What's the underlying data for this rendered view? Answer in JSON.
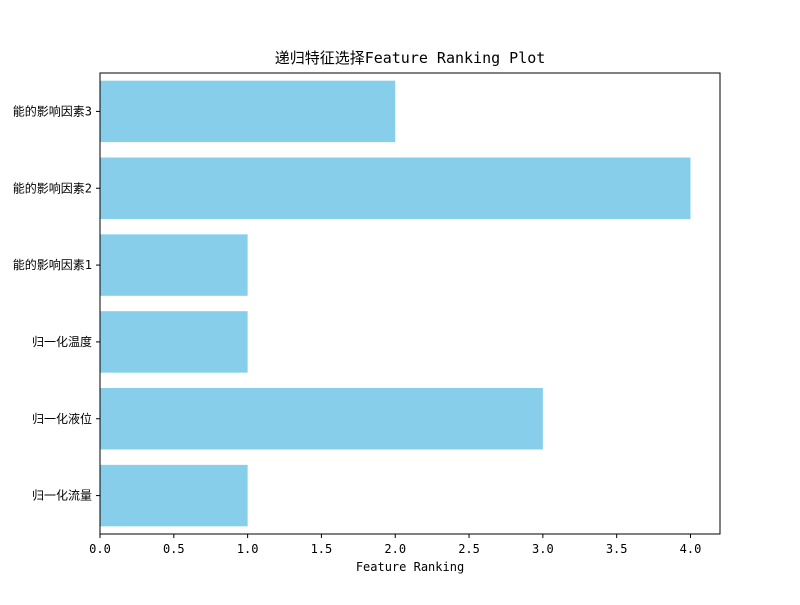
{
  "chart_data": {
    "type": "bar",
    "orientation": "horizontal",
    "title": "递归特征选择Feature Ranking Plot",
    "xlabel": "Feature Ranking",
    "ylabel": "",
    "categories": [
      "归一化流量",
      "归一化液位",
      "归一化温度",
      "能的影响因素1",
      "能的影响因素2",
      "能的影响因素3"
    ],
    "values": [
      1,
      3,
      1,
      1,
      4,
      2
    ],
    "xlim": [
      0,
      4.2
    ],
    "xticks": [
      "0.0",
      "0.5",
      "1.0",
      "1.5",
      "2.0",
      "2.5",
      "3.0",
      "3.5",
      "4.0"
    ],
    "grid": false,
    "bar_color": "#87ceeb"
  }
}
